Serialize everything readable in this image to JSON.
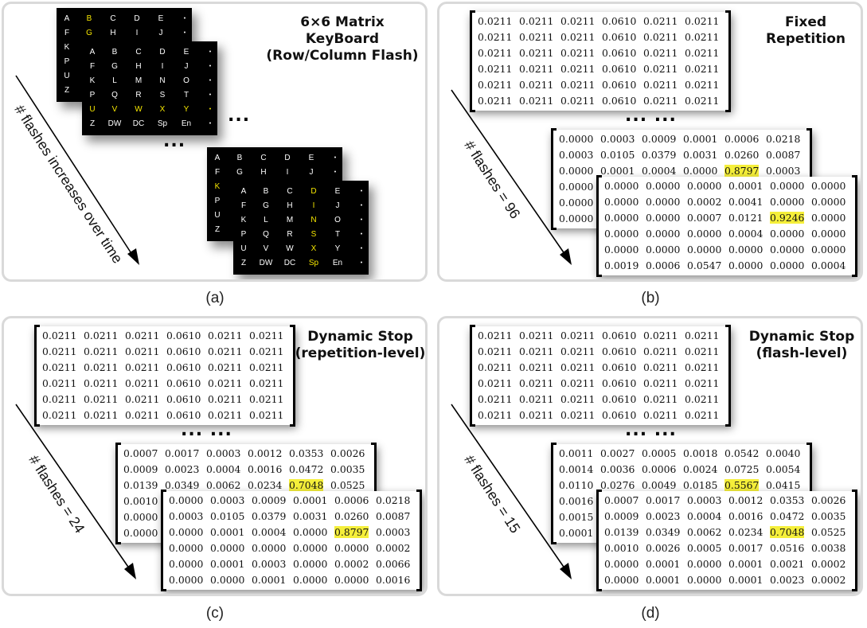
{
  "panel_a": {
    "title_line1": "6×6 Matrix KeyBoard",
    "title_line2": "(Row/Column Flash)",
    "arrow_label": "# flashes increases over time",
    "caption": "(a)",
    "ellipsis": "...",
    "keyboard_rows": [
      [
        "A",
        "B",
        "C",
        "D",
        "E",
        "•"
      ],
      [
        "F",
        "G",
        "H",
        "I",
        "J",
        "•"
      ],
      [
        "K",
        "L",
        "M",
        "N",
        "O",
        "•"
      ],
      [
        "P",
        "Q",
        "R",
        "S",
        "T",
        "•"
      ],
      [
        "U",
        "V",
        "W",
        "X",
        "Y",
        "•"
      ],
      [
        "Z",
        "DW",
        "DC",
        "Sp",
        "En",
        "•"
      ]
    ],
    "highlight_color": "#f5e600"
  },
  "panel_b": {
    "title_line1": "Fixed",
    "title_line2": "Repetition",
    "arrow_label": "# flashes = 96",
    "caption": "(b)",
    "ellipsis": "... ...",
    "matrices": [
      [
        [
          "0.0211",
          "0.0211",
          "0.0211",
          "0.0610",
          "0.0211",
          "0.0211"
        ],
        [
          "0.0211",
          "0.0211",
          "0.0211",
          "0.0610",
          "0.0211",
          "0.0211"
        ],
        [
          "0.0211",
          "0.0211",
          "0.0211",
          "0.0610",
          "0.0211",
          "0.0211"
        ],
        [
          "0.0211",
          "0.0211",
          "0.0211",
          "0.0610",
          "0.0211",
          "0.0211"
        ],
        [
          "0.0211",
          "0.0211",
          "0.0211",
          "0.0610",
          "0.0211",
          "0.0211"
        ],
        [
          "0.0211",
          "0.0211",
          "0.0211",
          "0.0610",
          "0.0211",
          "0.0211"
        ]
      ],
      [
        [
          "0.0000",
          "0.0003",
          "0.0009",
          "0.0001",
          "0.0006",
          "0.0218"
        ],
        [
          "0.0003",
          "0.0105",
          "0.0379",
          "0.0031",
          "0.0260",
          "0.0087"
        ],
        [
          "0.0000",
          "0.0001",
          "0.0004",
          "0.0000",
          "0.8797",
          "0.0003"
        ],
        [
          "0.0000",
          "",
          "",
          "",
          "",
          ""
        ],
        [
          "0.0000",
          "",
          "",
          "",
          "",
          ""
        ],
        [
          "0.0000",
          "",
          "",
          "",
          "",
          ""
        ]
      ],
      [
        [
          "0.0000",
          "0.0000",
          "0.0000",
          "0.0001",
          "0.0000",
          "0.0000"
        ],
        [
          "0.0000",
          "0.0000",
          "0.0002",
          "0.0041",
          "0.0000",
          "0.0000"
        ],
        [
          "0.0000",
          "0.0000",
          "0.0007",
          "0.0121",
          "0.9246",
          "0.0000"
        ],
        [
          "0.0000",
          "0.0000",
          "0.0000",
          "0.0004",
          "0.0000",
          "0.0000"
        ],
        [
          "0.0000",
          "0.0000",
          "0.0000",
          "0.0000",
          "0.0000",
          "0.0000"
        ],
        [
          "0.0019",
          "0.0006",
          "0.0547",
          "0.0000",
          "0.0000",
          "0.0004"
        ]
      ]
    ],
    "highlights": [
      null,
      [
        2,
        4
      ],
      [
        2,
        4
      ]
    ]
  },
  "panel_c": {
    "title_line1": "Dynamic Stop",
    "title_line2": "(repetition-level)",
    "arrow_label": "# flashes = 24",
    "caption": "(c)",
    "ellipsis": "... ...",
    "matrices": [
      [
        [
          "0.0211",
          "0.0211",
          "0.0211",
          "0.0610",
          "0.0211",
          "0.0211"
        ],
        [
          "0.0211",
          "0.0211",
          "0.0211",
          "0.0610",
          "0.0211",
          "0.0211"
        ],
        [
          "0.0211",
          "0.0211",
          "0.0211",
          "0.0610",
          "0.0211",
          "0.0211"
        ],
        [
          "0.0211",
          "0.0211",
          "0.0211",
          "0.0610",
          "0.0211",
          "0.0211"
        ],
        [
          "0.0211",
          "0.0211",
          "0.0211",
          "0.0610",
          "0.0211",
          "0.0211"
        ],
        [
          "0.0211",
          "0.0211",
          "0.0211",
          "0.0610",
          "0.0211",
          "0.0211"
        ]
      ],
      [
        [
          "0.0007",
          "0.0017",
          "0.0003",
          "0.0012",
          "0.0353",
          "0.0026"
        ],
        [
          "0.0009",
          "0.0023",
          "0.0004",
          "0.0016",
          "0.0472",
          "0.0035"
        ],
        [
          "0.0139",
          "0.0349",
          "0.0062",
          "0.0234",
          "0.7048",
          "0.0525"
        ],
        [
          "0.0010",
          "",
          "",
          "",
          "",
          ""
        ],
        [
          "0.0000",
          "",
          "",
          "",
          "",
          ""
        ],
        [
          "0.0000",
          "",
          "",
          "",
          "",
          ""
        ]
      ],
      [
        [
          "0.0000",
          "0.0003",
          "0.0009",
          "0.0001",
          "0.0006",
          "0.0218"
        ],
        [
          "0.0003",
          "0.0105",
          "0.0379",
          "0.0031",
          "0.0260",
          "0.0087"
        ],
        [
          "0.0000",
          "0.0001",
          "0.0004",
          "0.0000",
          "0.8797",
          "0.0003"
        ],
        [
          "0.0000",
          "0.0000",
          "0.0000",
          "0.0000",
          "0.0000",
          "0.0002"
        ],
        [
          "0.0000",
          "0.0001",
          "0.0003",
          "0.0000",
          "0.0002",
          "0.0066"
        ],
        [
          "0.0000",
          "0.0000",
          "0.0001",
          "0.0000",
          "0.0000",
          "0.0016"
        ]
      ]
    ],
    "highlights": [
      null,
      [
        2,
        4
      ],
      [
        2,
        4
      ]
    ]
  },
  "panel_d": {
    "title_line1": "Dynamic Stop",
    "title_line2": "(flash-level)",
    "arrow_label": "# flashes = 15",
    "caption": "(d)",
    "ellipsis": "... ...",
    "matrices": [
      [
        [
          "0.0211",
          "0.0211",
          "0.0211",
          "0.0610",
          "0.0211",
          "0.0211"
        ],
        [
          "0.0211",
          "0.0211",
          "0.0211",
          "0.0610",
          "0.0211",
          "0.0211"
        ],
        [
          "0.0211",
          "0.0211",
          "0.0211",
          "0.0610",
          "0.0211",
          "0.0211"
        ],
        [
          "0.0211",
          "0.0211",
          "0.0211",
          "0.0610",
          "0.0211",
          "0.0211"
        ],
        [
          "0.0211",
          "0.0211",
          "0.0211",
          "0.0610",
          "0.0211",
          "0.0211"
        ],
        [
          "0.0211",
          "0.0211",
          "0.0211",
          "0.0610",
          "0.0211",
          "0.0211"
        ]
      ],
      [
        [
          "0.0011",
          "0.0027",
          "0.0005",
          "0.0018",
          "0.0542",
          "0.0040"
        ],
        [
          "0.0014",
          "0.0036",
          "0.0006",
          "0.0024",
          "0.0725",
          "0.0054"
        ],
        [
          "0.0110",
          "0.0276",
          "0.0049",
          "0.0185",
          "0.5567",
          "0.0415"
        ],
        [
          "0.0016",
          "",
          "",
          "",
          "",
          ""
        ],
        [
          "0.0015",
          "",
          "",
          "",
          "",
          ""
        ],
        [
          "0.0001",
          "",
          "",
          "",
          "",
          ""
        ]
      ],
      [
        [
          "0.0007",
          "0.0017",
          "0.0003",
          "0.0012",
          "0.0353",
          "0.0026"
        ],
        [
          "0.0009",
          "0.0023",
          "0.0004",
          "0.0016",
          "0.0472",
          "0.0035"
        ],
        [
          "0.0139",
          "0.0349",
          "0.0062",
          "0.0234",
          "0.7048",
          "0.0525"
        ],
        [
          "0.0010",
          "0.0026",
          "0.0005",
          "0.0017",
          "0.0516",
          "0.0038"
        ],
        [
          "0.0000",
          "0.0001",
          "0.0000",
          "0.0001",
          "0.0021",
          "0.0002"
        ],
        [
          "0.0000",
          "0.0001",
          "0.0000",
          "0.0001",
          "0.0023",
          "0.0002"
        ]
      ]
    ],
    "highlights": [
      null,
      [
        2,
        4
      ],
      [
        2,
        4
      ]
    ]
  }
}
